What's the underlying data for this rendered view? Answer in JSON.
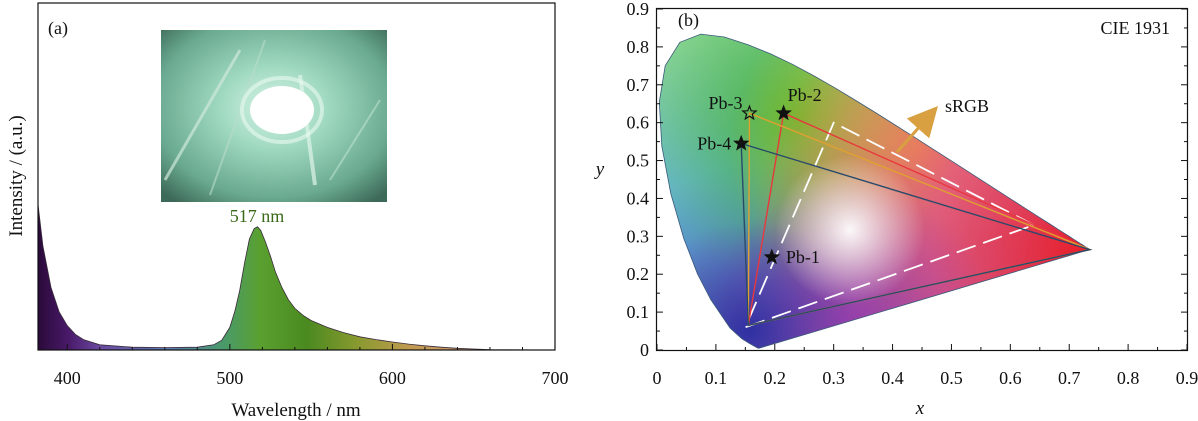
{
  "chart_data": [
    {
      "panel_label": "(a)",
      "type": "area",
      "xlabel": "Wavelength / nm",
      "ylabel": "Intensity / (a.u.)",
      "xlim": [
        382,
        700
      ],
      "ylim": [
        0,
        1.0
      ],
      "x_ticks": [
        "400",
        "500",
        "600",
        "700"
      ],
      "x_tick_values": [
        400,
        500,
        600,
        700
      ],
      "inset_photo": true,
      "annotation": "517 nm",
      "series": [
        {
          "x": [
            382,
            385,
            390,
            395,
            400,
            405,
            410,
            420,
            440,
            460,
            480,
            490,
            495,
            500,
            503,
            506,
            509,
            512,
            515,
            517,
            519,
            522,
            525,
            528,
            532,
            536,
            540,
            545,
            550,
            560,
            570,
            580,
            590,
            600,
            610,
            620,
            630,
            640,
            650,
            660,
            700
          ],
          "values": [
            0.42,
            0.3,
            0.18,
            0.11,
            0.07,
            0.045,
            0.03,
            0.015,
            0.008,
            0.007,
            0.008,
            0.015,
            0.028,
            0.065,
            0.11,
            0.17,
            0.25,
            0.32,
            0.35,
            0.355,
            0.345,
            0.31,
            0.27,
            0.225,
            0.18,
            0.145,
            0.12,
            0.1,
            0.085,
            0.065,
            0.05,
            0.038,
            0.03,
            0.023,
            0.017,
            0.012,
            0.008,
            0.005,
            0.003,
            0.001,
            0.0
          ]
        }
      ]
    },
    {
      "panel_label": "(b)",
      "type": "scatter",
      "title": "CIE 1931",
      "xlabel": "x",
      "ylabel": "y",
      "xlim": [
        0,
        0.9
      ],
      "ylim": [
        0,
        0.9
      ],
      "x_ticks": [
        "0",
        "0.1",
        "0.2",
        "0.3",
        "0.4",
        "0.5",
        "0.6",
        "0.7",
        "0.8",
        "0.9"
      ],
      "y_ticks": [
        "0",
        "0.1",
        "0.2",
        "0.3",
        "0.4",
        "0.5",
        "0.6",
        "0.7",
        "0.8",
        "0.9"
      ],
      "tick_values": [
        0,
        0.1,
        0.2,
        0.3,
        0.4,
        0.5,
        0.6,
        0.7,
        0.8,
        0.9
      ],
      "points": [
        {
          "name": "Pb-1",
          "x": 0.195,
          "y": 0.245
        },
        {
          "name": "Pb-2",
          "x": 0.215,
          "y": 0.625
        },
        {
          "name": "Pb-3",
          "x": 0.157,
          "y": 0.625
        },
        {
          "name": "Pb-4",
          "x": 0.143,
          "y": 0.545
        }
      ],
      "triangles": [
        {
          "green": "Pb-2",
          "red": [
            0.735,
            0.265
          ],
          "blue": [
            0.155,
            0.065
          ],
          "color": "#e8383d"
        },
        {
          "green": "Pb-3",
          "red": [
            0.735,
            0.265
          ],
          "blue": [
            0.155,
            0.065
          ],
          "color": "#e0a030"
        },
        {
          "green": "Pb-4",
          "red": [
            0.735,
            0.265
          ],
          "blue": [
            0.155,
            0.065
          ],
          "color": "#2a4a6a"
        }
      ],
      "srgb_triangle": {
        "label": "sRGB",
        "points": [
          [
            0.64,
            0.33
          ],
          [
            0.3,
            0.6
          ],
          [
            0.15,
            0.06
          ]
        ],
        "color": "#ffffff"
      },
      "arrow_color": "#d8a040"
    }
  ]
}
